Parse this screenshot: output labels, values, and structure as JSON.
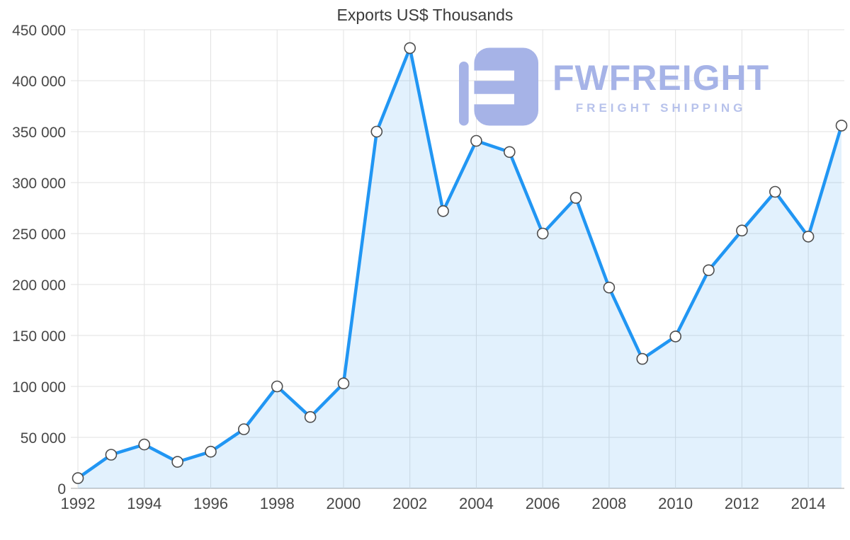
{
  "title": "Exports US$ Thousands",
  "watermark": {
    "brand": "FWFREIGHT",
    "tagline": "FREIGHT SHIPPING",
    "color": "#a6b3e7"
  },
  "chart_data": {
    "type": "area",
    "title": "Exports US$ Thousands",
    "x": [
      1992,
      1993,
      1994,
      1995,
      1996,
      1997,
      1998,
      1999,
      2000,
      2001,
      2002,
      2003,
      2004,
      2005,
      2006,
      2007,
      2008,
      2009,
      2010,
      2011,
      2012,
      2013,
      2014,
      2015
    ],
    "values": [
      10000,
      33000,
      43000,
      26000,
      36000,
      58000,
      100000,
      70000,
      103000,
      350000,
      432000,
      272000,
      341000,
      330000,
      250000,
      285000,
      197000,
      127000,
      149000,
      214000,
      253000,
      291000,
      247000,
      356000
    ],
    "ylim": [
      0,
      450000
    ],
    "ytick_values": [
      0,
      50000,
      100000,
      150000,
      200000,
      250000,
      300000,
      350000,
      400000,
      450000
    ],
    "ytick_labels": [
      "0",
      "50 000",
      "100 000",
      "150 000",
      "200 000",
      "250 000",
      "300 000",
      "350 000",
      "400 000",
      "450 000"
    ],
    "xtick_values": [
      1992,
      1994,
      1996,
      1998,
      2000,
      2002,
      2004,
      2006,
      2008,
      2010,
      2012,
      2014
    ],
    "xtick_labels": [
      "1992",
      "1994",
      "1996",
      "1998",
      "2000",
      "2002",
      "2004",
      "2006",
      "2008",
      "2010",
      "2012",
      "2014"
    ],
    "grid": true,
    "legend": "none",
    "line_color": "#2196f3",
    "fill_color": "rgba(33,150,243,0.13)",
    "marker_fill": "#ffffff",
    "marker_stroke": "#4d4d4d",
    "axis_label_color": "#474747",
    "grid_color": "#e2e2e2",
    "axis_line_color": "#c2c2c2"
  }
}
